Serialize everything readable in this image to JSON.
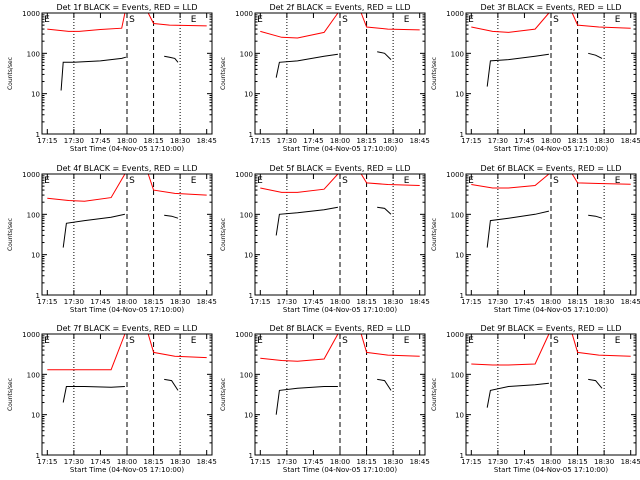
{
  "chart_data": [
    {
      "type": "line",
      "title": "Det 1f BLACK = Events, RED = LLD",
      "xlabel": "Start Time (04-Nov-05 17:10:00)",
      "ylabel": "Counts/sec",
      "yscale": "log",
      "ylim": [
        1,
        1000
      ],
      "xticks": [
        "17:15",
        "17:30",
        "17:45",
        "18:00",
        "18:15",
        "18:30",
        "18:45"
      ],
      "markers": [
        "E",
        "S",
        "E"
      ],
      "series": [
        {
          "name": "BLACK = Events",
          "color": "#000000",
          "segments": [
            [
              [
                17.38,
                12
              ],
              [
                17.4,
                60
              ],
              [
                17.5,
                60
              ],
              [
                17.75,
                65
              ],
              [
                17.95,
                75
              ],
              [
                17.99,
                80
              ]
            ],
            [
              [
                18.35,
                85
              ],
              [
                18.4,
                80
              ],
              [
                18.45,
                75
              ],
              [
                18.48,
                60
              ]
            ]
          ]
        },
        {
          "name": "RED = LLD",
          "color": "#ff0000",
          "segments": [
            [
              [
                17.25,
                400
              ],
              [
                17.45,
                350
              ],
              [
                17.55,
                350
              ],
              [
                17.75,
                390
              ],
              [
                17.95,
                420
              ],
              [
                17.98,
                1000
              ]
            ],
            [
              [
                18.2,
                1000
              ],
              [
                18.25,
                550
              ],
              [
                18.4,
                500
              ],
              [
                18.75,
                480
              ]
            ]
          ]
        }
      ]
    },
    {
      "type": "line",
      "title": "Det 2f BLACK = Events, RED = LLD",
      "xlabel": "Start Time (04-Nov-05 17:10:00)",
      "ylabel": "Counts/sec",
      "yscale": "log",
      "ylim": [
        1,
        1000
      ],
      "xticks": [
        "17:15",
        "17:30",
        "17:45",
        "18:00",
        "18:15",
        "18:30",
        "18:45"
      ],
      "markers": [
        "E",
        "S",
        "E"
      ],
      "series": [
        {
          "name": "BLACK = Events",
          "color": "#000000",
          "segments": [
            [
              [
                17.4,
                25
              ],
              [
                17.43,
                60
              ],
              [
                17.6,
                65
              ],
              [
                17.85,
                85
              ],
              [
                17.98,
                95
              ]
            ],
            [
              [
                18.35,
                110
              ],
              [
                18.42,
                100
              ],
              [
                18.48,
                70
              ]
            ]
          ]
        },
        {
          "name": "RED = LLD",
          "color": "#ff0000",
          "segments": [
            [
              [
                17.25,
                350
              ],
              [
                17.45,
                250
              ],
              [
                17.6,
                240
              ],
              [
                17.85,
                330
              ],
              [
                17.98,
                1000
              ]
            ],
            [
              [
                18.2,
                1000
              ],
              [
                18.25,
                450
              ],
              [
                18.45,
                400
              ],
              [
                18.75,
                380
              ]
            ]
          ]
        }
      ]
    },
    {
      "type": "line",
      "title": "Det 3f BLACK = Events, RED = LLD",
      "xlabel": "Start Time (04-Nov-05 17:10:00)",
      "ylabel": "Counts/sec",
      "yscale": "log",
      "ylim": [
        1,
        1000
      ],
      "xticks": [
        "17:15",
        "17:30",
        "17:45",
        "18:00",
        "18:15",
        "18:30",
        "18:45"
      ],
      "markers": [
        "E",
        "S",
        "E"
      ],
      "series": [
        {
          "name": "BLACK = Events",
          "color": "#000000",
          "segments": [
            [
              [
                17.4,
                15
              ],
              [
                17.43,
                65
              ],
              [
                17.6,
                70
              ],
              [
                17.85,
                85
              ],
              [
                17.98,
                95
              ]
            ],
            [
              [
                18.35,
                100
              ],
              [
                18.42,
                90
              ],
              [
                18.48,
                75
              ]
            ]
          ]
        },
        {
          "name": "RED = LLD",
          "color": "#ff0000",
          "segments": [
            [
              [
                17.25,
                450
              ],
              [
                17.45,
                350
              ],
              [
                17.6,
                330
              ],
              [
                17.85,
                400
              ],
              [
                17.98,
                1000
              ]
            ],
            [
              [
                18.2,
                1000
              ],
              [
                18.25,
                500
              ],
              [
                18.45,
                450
              ],
              [
                18.75,
                420
              ]
            ]
          ]
        }
      ]
    },
    {
      "type": "line",
      "title": "Det 4f BLACK = Events, RED = LLD",
      "xlabel": "Start Time (04-Nov-05 17:10:00)",
      "ylabel": "Counts/sec",
      "yscale": "log",
      "ylim": [
        1,
        1000
      ],
      "xticks": [
        "17:15",
        "17:30",
        "17:45",
        "18:00",
        "18:15",
        "18:30",
        "18:45"
      ],
      "markers": [
        "E",
        "S",
        "E"
      ],
      "series": [
        {
          "name": "BLACK = Events",
          "color": "#000000",
          "segments": [
            [
              [
                17.4,
                15
              ],
              [
                17.43,
                60
              ],
              [
                17.6,
                70
              ],
              [
                17.85,
                85
              ],
              [
                17.98,
                100
              ]
            ],
            [
              [
                18.35,
                95
              ],
              [
                18.42,
                90
              ],
              [
                18.48,
                80
              ]
            ]
          ]
        },
        {
          "name": "RED = LLD",
          "color": "#ff0000",
          "segments": [
            [
              [
                17.25,
                250
              ],
              [
                17.45,
                220
              ],
              [
                17.6,
                210
              ],
              [
                17.85,
                260
              ],
              [
                17.98,
                1000
              ]
            ],
            [
              [
                18.2,
                1000
              ],
              [
                18.25,
                400
              ],
              [
                18.45,
                330
              ],
              [
                18.75,
                300
              ]
            ]
          ]
        }
      ]
    },
    {
      "type": "line",
      "title": "Det 5f BLACK = Events, RED = LLD",
      "xlabel": "Start Time (04-Nov-05 17:10:00)",
      "ylabel": "Counts/sec",
      "yscale": "log",
      "ylim": [
        1,
        1000
      ],
      "xticks": [
        "17:15",
        "17:30",
        "17:45",
        "18:00",
        "18:15",
        "18:30",
        "18:45"
      ],
      "markers": [
        "E",
        "S",
        "E"
      ],
      "series": [
        {
          "name": "BLACK = Events",
          "color": "#000000",
          "segments": [
            [
              [
                17.4,
                30
              ],
              [
                17.43,
                100
              ],
              [
                17.6,
                110
              ],
              [
                17.85,
                130
              ],
              [
                17.98,
                150
              ]
            ],
            [
              [
                18.35,
                150
              ],
              [
                18.42,
                140
              ],
              [
                18.48,
                100
              ]
            ]
          ]
        },
        {
          "name": "RED = LLD",
          "color": "#ff0000",
          "segments": [
            [
              [
                17.25,
                450
              ],
              [
                17.45,
                350
              ],
              [
                17.6,
                350
              ],
              [
                17.85,
                420
              ],
              [
                17.98,
                1000
              ]
            ],
            [
              [
                18.2,
                1000
              ],
              [
                18.25,
                600
              ],
              [
                18.45,
                550
              ],
              [
                18.75,
                520
              ]
            ]
          ]
        }
      ]
    },
    {
      "type": "line",
      "title": "Det 6f BLACK = Events, RED = LLD",
      "xlabel": "Start Time (04-Nov-05 17:10:00)",
      "ylabel": "Counts/sec",
      "yscale": "log",
      "ylim": [
        1,
        1000
      ],
      "xticks": [
        "17:15",
        "17:30",
        "17:45",
        "18:00",
        "18:15",
        "18:30",
        "18:45"
      ],
      "markers": [
        "E",
        "S",
        "E"
      ],
      "series": [
        {
          "name": "BLACK = Events",
          "color": "#000000",
          "segments": [
            [
              [
                17.4,
                15
              ],
              [
                17.43,
                70
              ],
              [
                17.6,
                80
              ],
              [
                17.85,
                100
              ],
              [
                17.98,
                120
              ]
            ],
            [
              [
                18.35,
                95
              ],
              [
                18.42,
                90
              ],
              [
                18.48,
                80
              ]
            ]
          ]
        },
        {
          "name": "RED = LLD",
          "color": "#ff0000",
          "segments": [
            [
              [
                17.25,
                550
              ],
              [
                17.45,
                450
              ],
              [
                17.6,
                450
              ],
              [
                17.85,
                520
              ],
              [
                17.98,
                1000
              ]
            ],
            [
              [
                18.2,
                1000
              ],
              [
                18.25,
                600
              ],
              [
                18.45,
                580
              ],
              [
                18.75,
                560
              ]
            ]
          ]
        }
      ]
    },
    {
      "type": "line",
      "title": "Det 7f BLACK = Events, RED = LLD",
      "xlabel": "Start Time (04-Nov-05 17:10:00)",
      "ylabel": "Counts/sec",
      "yscale": "log",
      "ylim": [
        1,
        1000
      ],
      "xticks": [
        "17:15",
        "17:30",
        "17:45",
        "18:00",
        "18:15",
        "18:30",
        "18:45"
      ],
      "markers": [
        "E",
        "S",
        "E"
      ],
      "series": [
        {
          "name": "BLACK = Events",
          "color": "#000000",
          "segments": [
            [
              [
                17.4,
                20
              ],
              [
                17.43,
                50
              ],
              [
                17.6,
                50
              ],
              [
                17.85,
                48
              ],
              [
                17.98,
                50
              ]
            ],
            [
              [
                18.35,
                75
              ],
              [
                18.42,
                70
              ],
              [
                18.48,
                40
              ]
            ]
          ]
        },
        {
          "name": "RED = LLD",
          "color": "#ff0000",
          "segments": [
            [
              [
                17.25,
                130
              ],
              [
                17.45,
                130
              ],
              [
                17.6,
                130
              ],
              [
                17.85,
                130
              ],
              [
                17.98,
                1000
              ]
            ],
            [
              [
                18.2,
                1000
              ],
              [
                18.25,
                350
              ],
              [
                18.45,
                280
              ],
              [
                18.75,
                260
              ]
            ]
          ]
        }
      ]
    },
    {
      "type": "line",
      "title": "Det 8f BLACK = Events, RED = LLD",
      "xlabel": "Start Time (04-Nov-05 17:10:00)",
      "ylabel": "Counts/sec",
      "yscale": "log",
      "ylim": [
        1,
        1000
      ],
      "xticks": [
        "17:15",
        "17:30",
        "17:45",
        "18:00",
        "18:15",
        "18:30",
        "18:45"
      ],
      "markers": [
        "E",
        "S",
        "E"
      ],
      "series": [
        {
          "name": "BLACK = Events",
          "color": "#000000",
          "segments": [
            [
              [
                17.4,
                10
              ],
              [
                17.43,
                40
              ],
              [
                17.6,
                45
              ],
              [
                17.85,
                50
              ],
              [
                17.98,
                50
              ]
            ],
            [
              [
                18.35,
                75
              ],
              [
                18.42,
                70
              ],
              [
                18.48,
                40
              ]
            ]
          ]
        },
        {
          "name": "RED = LLD",
          "color": "#ff0000",
          "segments": [
            [
              [
                17.25,
                250
              ],
              [
                17.45,
                220
              ],
              [
                17.6,
                210
              ],
              [
                17.85,
                240
              ],
              [
                17.98,
                1000
              ]
            ],
            [
              [
                18.2,
                1000
              ],
              [
                18.25,
                350
              ],
              [
                18.45,
                300
              ],
              [
                18.75,
                280
              ]
            ]
          ]
        }
      ]
    },
    {
      "type": "line",
      "title": "Det 9f BLACK = Events, RED = LLD",
      "xlabel": "Start Time (04-Nov-05 17:10:00)",
      "ylabel": "Counts/sec",
      "yscale": "log",
      "ylim": [
        1,
        1000
      ],
      "xticks": [
        "17:15",
        "17:30",
        "17:45",
        "18:00",
        "18:15",
        "18:30",
        "18:45"
      ],
      "markers": [
        "E",
        "S",
        "E"
      ],
      "series": [
        {
          "name": "BLACK = Events",
          "color": "#000000",
          "segments": [
            [
              [
                17.4,
                15
              ],
              [
                17.43,
                40
              ],
              [
                17.6,
                50
              ],
              [
                17.85,
                55
              ],
              [
                17.98,
                60
              ]
            ],
            [
              [
                18.35,
                75
              ],
              [
                18.42,
                70
              ],
              [
                18.48,
                45
              ]
            ]
          ]
        },
        {
          "name": "RED = LLD",
          "color": "#ff0000",
          "segments": [
            [
              [
                17.25,
                180
              ],
              [
                17.45,
                170
              ],
              [
                17.6,
                170
              ],
              [
                17.85,
                180
              ],
              [
                17.98,
                1000
              ]
            ],
            [
              [
                18.2,
                1000
              ],
              [
                18.25,
                350
              ],
              [
                18.45,
                300
              ],
              [
                18.75,
                280
              ]
            ]
          ]
        }
      ]
    }
  ]
}
